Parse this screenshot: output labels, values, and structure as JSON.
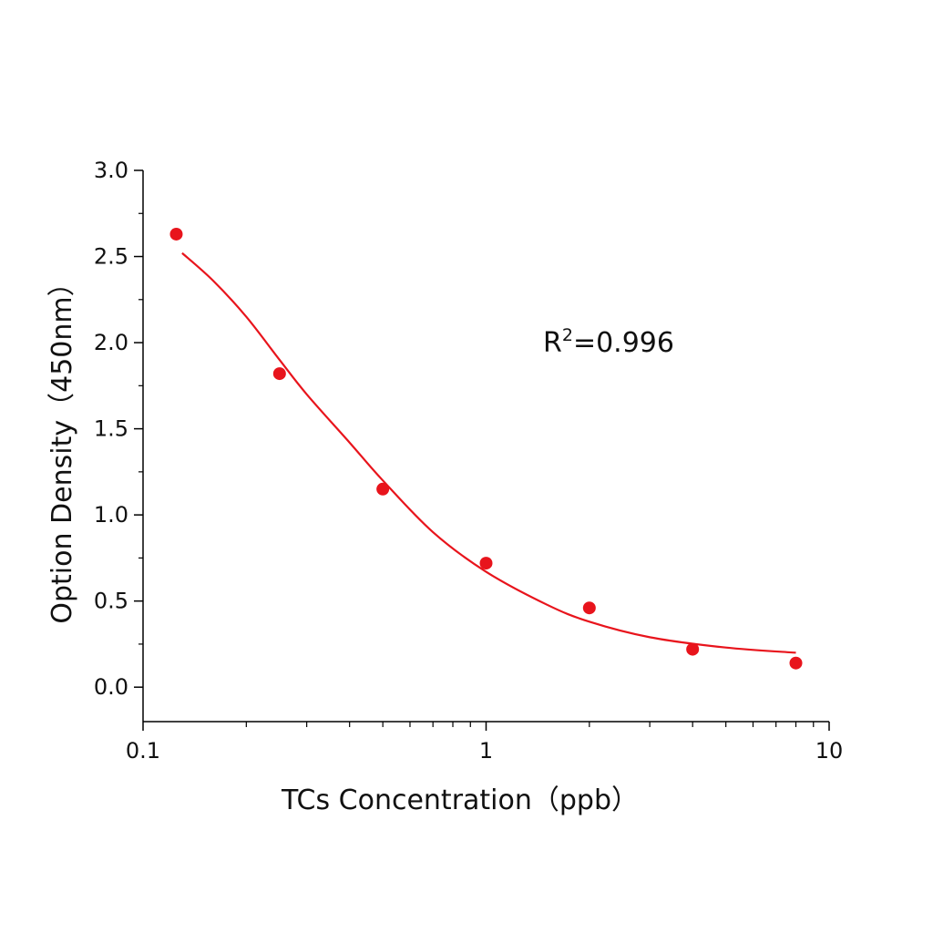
{
  "chart_data": {
    "type": "scatter",
    "title": "",
    "xlabel": "TCs Concentration（ppb）",
    "ylabel": "Option Density（450nm）",
    "x_scale": "log",
    "xlim": [
      0.1,
      10
    ],
    "ylim": [
      -0.2,
      3.0
    ],
    "x_ticks": [
      0.1,
      1,
      10
    ],
    "x_tick_labels": [
      "0.1",
      "1",
      "10"
    ],
    "y_ticks": [
      0.0,
      0.5,
      1.0,
      1.5,
      2.0,
      2.5,
      3.0
    ],
    "y_tick_labels": [
      "0.0",
      "0.5",
      "1.0",
      "1.5",
      "2.0",
      "2.5",
      "3.0"
    ],
    "grid": false,
    "legend": "none",
    "series": [
      {
        "kind": "points",
        "color": "#e8141c",
        "x": [
          0.125,
          0.25,
          0.5,
          1,
          2,
          4,
          8
        ],
        "y": [
          2.63,
          1.82,
          1.15,
          0.72,
          0.46,
          0.22,
          0.14
        ]
      },
      {
        "kind": "fit-line",
        "color": "#e8141c",
        "x": [
          0.13,
          0.16,
          0.2,
          0.25,
          0.3,
          0.4,
          0.5,
          0.7,
          1,
          1.5,
          2,
          3,
          5,
          8
        ],
        "y": [
          2.52,
          2.36,
          2.15,
          1.9,
          1.7,
          1.42,
          1.2,
          0.9,
          0.67,
          0.48,
          0.38,
          0.29,
          0.23,
          0.2
        ]
      }
    ],
    "annotations": {
      "r_label": "R",
      "r_sup": "2",
      "r_value": "=0.996"
    }
  }
}
